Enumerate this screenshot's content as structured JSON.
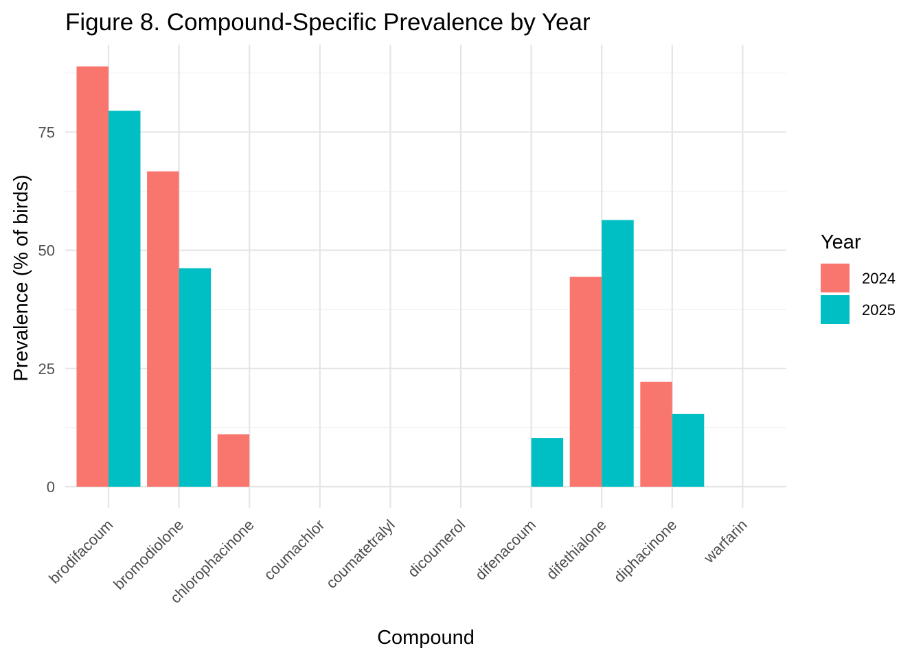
{
  "chart_data": {
    "type": "bar",
    "title": "Figure 8. Compound-Specific Prevalence by Year",
    "xlabel": "Compound",
    "ylabel": "Prevalence (% of birds)",
    "categories": [
      "brodifacoum",
      "bromodiolone",
      "chlorophacinone",
      "coumachlor",
      "coumatetralyl",
      "dicoumerol",
      "difenacoum",
      "difethialone",
      "diphacinone",
      "warfarin"
    ],
    "series": [
      {
        "name": "2024",
        "color": "#F8766D",
        "values": [
          88.9,
          66.7,
          11.1,
          0,
          0,
          0,
          0,
          44.4,
          22.2,
          0
        ]
      },
      {
        "name": "2025",
        "color": "#00BFC4",
        "values": [
          79.5,
          46.2,
          0,
          0,
          0,
          0,
          10.3,
          56.4,
          15.4,
          0
        ]
      }
    ],
    "yticks": [
      0,
      25,
      50,
      75
    ],
    "ylim": [
      -4.5,
      93.5
    ],
    "grid": true,
    "legend": {
      "title": "Year",
      "position": "right"
    }
  }
}
